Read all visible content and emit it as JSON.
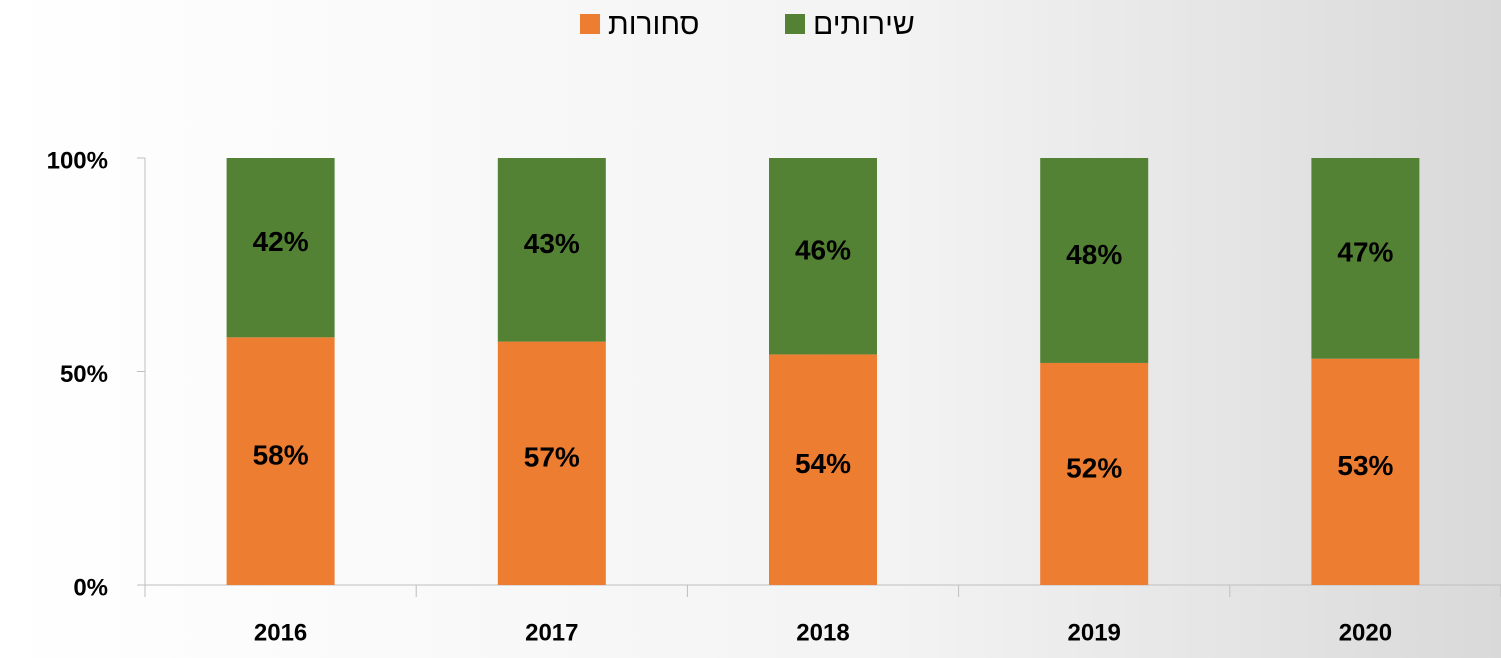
{
  "chart_data": {
    "type": "stacked_bar",
    "categories": [
      "2016",
      "2017",
      "2018",
      "2019",
      "2020"
    ],
    "series": [
      {
        "name": "סחורות",
        "color": "#ed7d31",
        "values": [
          58,
          57,
          54,
          52,
          53
        ],
        "value_labels": [
          "58%",
          "57%",
          "54%",
          "52%",
          "53%"
        ]
      },
      {
        "name": "שירותים",
        "color": "#548235",
        "values": [
          42,
          43,
          46,
          48,
          47
        ],
        "value_labels": [
          "42%",
          "43%",
          "46%",
          "48%",
          "47%"
        ]
      }
    ],
    "ylim": [
      0,
      100
    ],
    "yticks": [
      {
        "value": 0,
        "label": "0%"
      },
      {
        "value": 50,
        "label": "50%"
      },
      {
        "value": 100,
        "label": "100%"
      }
    ],
    "legend": "top"
  }
}
